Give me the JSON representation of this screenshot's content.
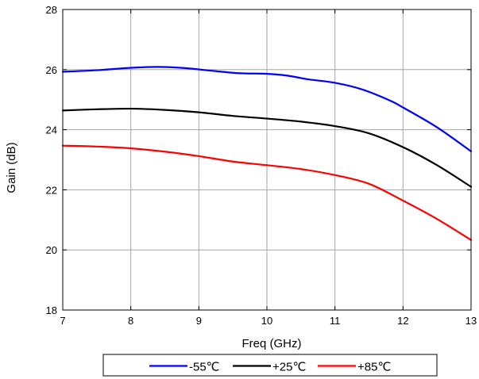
{
  "chart_data": {
    "type": "line",
    "title": "",
    "xlabel": "Freq (GHz)",
    "ylabel": "Gain (dB)",
    "xlim": [
      7,
      13
    ],
    "ylim": [
      18,
      28
    ],
    "xticks": [
      7,
      8,
      9,
      10,
      11,
      12,
      13
    ],
    "yticks": [
      18,
      20,
      22,
      24,
      26,
      28
    ],
    "grid": true,
    "legend_position": "bottom",
    "series": [
      {
        "name": "-55℃",
        "color": "#0000ff",
        "x": [
          7,
          7.5,
          8,
          8.4,
          8.8,
          9.2,
          9.6,
          10,
          10.3,
          10.6,
          11,
          11.4,
          11.8,
          12,
          12.5,
          13
        ],
        "y": [
          25.93,
          25.98,
          26.06,
          26.09,
          26.05,
          25.96,
          25.88,
          25.86,
          25.8,
          25.68,
          25.56,
          25.34,
          24.98,
          24.74,
          24.08,
          23.28
        ]
      },
      {
        "name": "+25℃",
        "color": "#000000",
        "x": [
          7,
          7.5,
          8,
          8.5,
          9,
          9.5,
          10,
          10.5,
          11,
          11.5,
          12,
          12.5,
          13
        ],
        "y": [
          24.64,
          24.68,
          24.7,
          24.66,
          24.58,
          24.46,
          24.37,
          24.27,
          24.12,
          23.88,
          23.42,
          22.82,
          22.1
        ]
      },
      {
        "name": "+85℃",
        "color": "#ff0000",
        "x": [
          7,
          7.5,
          8,
          8.5,
          9,
          9.5,
          10,
          10.5,
          11,
          11.5,
          12,
          12.5,
          13
        ],
        "y": [
          23.47,
          23.44,
          23.38,
          23.27,
          23.12,
          22.94,
          22.82,
          22.69,
          22.49,
          22.2,
          21.64,
          21.03,
          20.33
        ]
      }
    ]
  }
}
